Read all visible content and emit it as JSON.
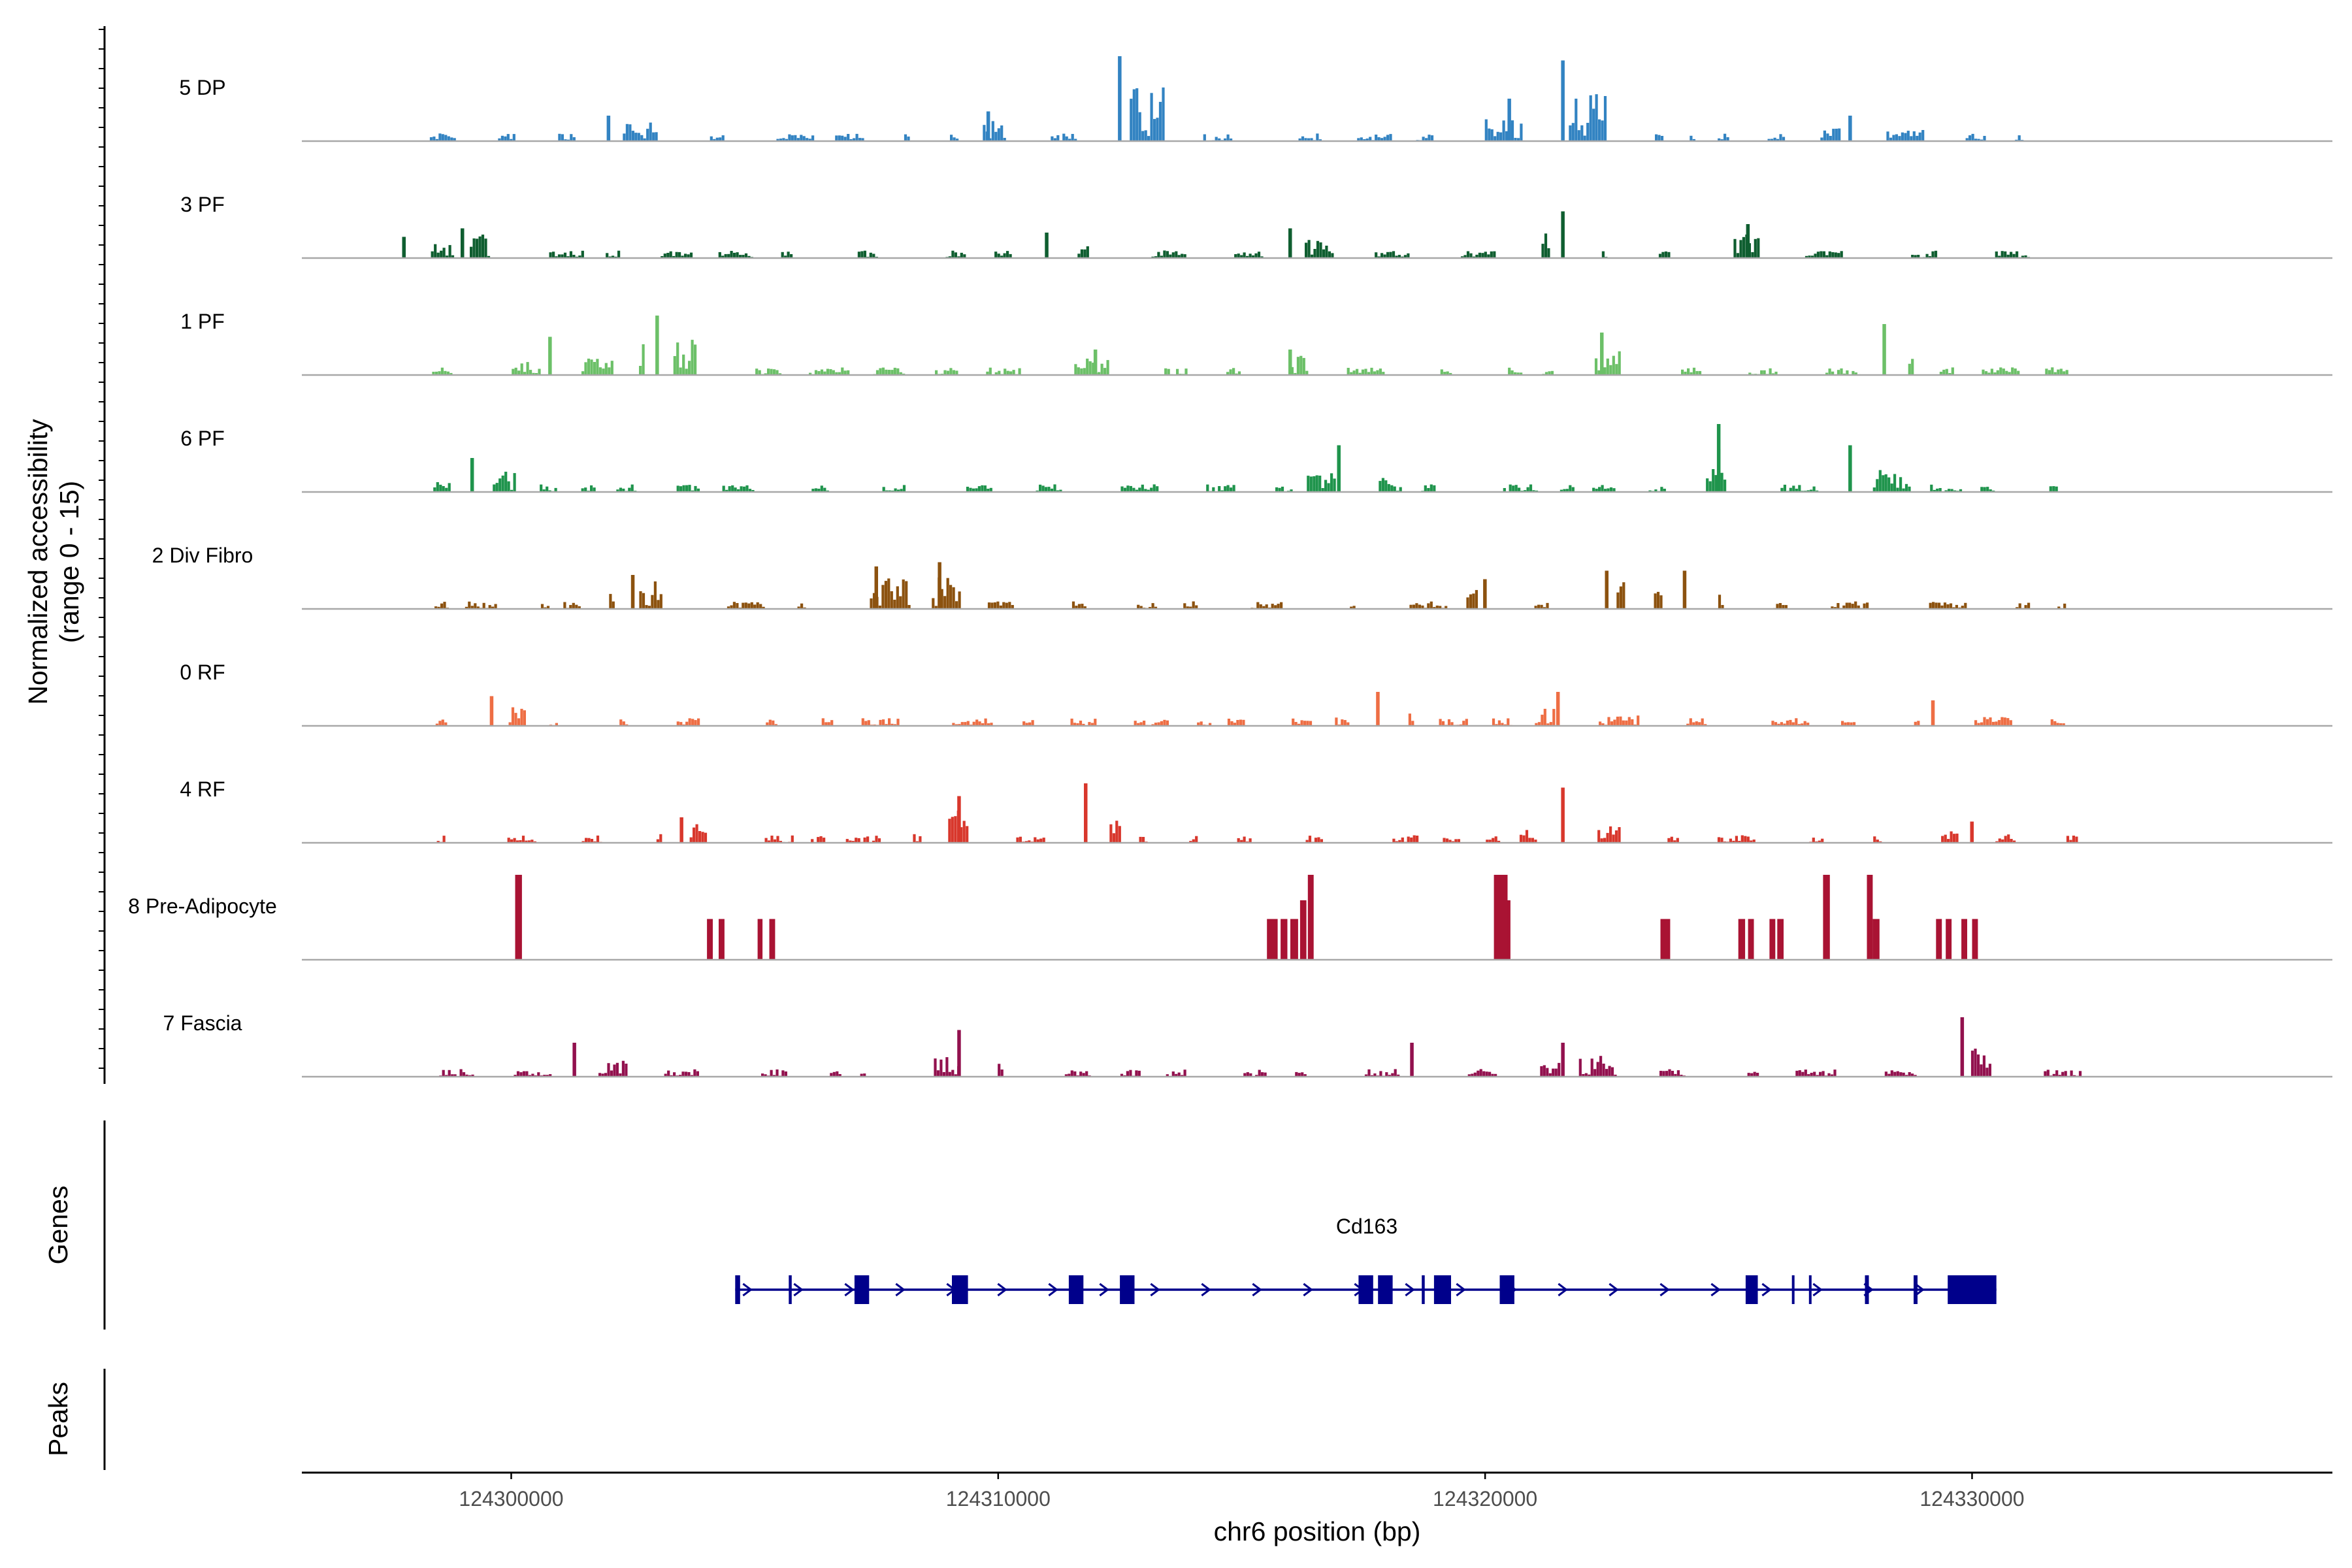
{
  "chart_data": {
    "type": "area",
    "title": "",
    "ylabel_line1": "Normalized accessibility",
    "ylabel_line2": "(range 0 - 15)",
    "y_range": [
      0,
      15
    ],
    "xlabel": "chr6 position (bp)",
    "xlim": [
      124295700,
      124337400
    ],
    "x_ticks": [
      124300000,
      124310000,
      124320000,
      124330000
    ],
    "x_tick_labels": [
      "124300000",
      "124310000",
      "124320000",
      "124330000"
    ],
    "coverage_tracks": [
      {
        "name": "5 DP",
        "color": "#3283C2",
        "hotspots": [
          [
            124302000,
            0.3
          ],
          [
            124309800,
            0.35
          ],
          [
            124312500,
            1.0
          ],
          [
            124320500,
            0.5
          ],
          [
            124321600,
            0.95
          ],
          [
            124327500,
            0.3
          ]
        ]
      },
      {
        "name": "3 PF",
        "color": "#0F5E30",
        "hotspots": [
          [
            124297800,
            0.25
          ],
          [
            124299000,
            0.35
          ],
          [
            124311000,
            0.3
          ],
          [
            124316000,
            0.35
          ],
          [
            124321600,
            0.55
          ],
          [
            124325400,
            0.4
          ]
        ]
      },
      {
        "name": "1 PF",
        "color": "#6CC068",
        "hotspots": [
          [
            124300800,
            0.45
          ],
          [
            124303000,
            0.7
          ],
          [
            124312000,
            0.3
          ],
          [
            124316000,
            0.3
          ],
          [
            124322400,
            0.5
          ],
          [
            124328200,
            0.6
          ]
        ]
      },
      {
        "name": "6 PF",
        "color": "#1F944C",
        "hotspots": [
          [
            124299200,
            0.4
          ],
          [
            124317000,
            0.55
          ],
          [
            124324800,
            0.8
          ],
          [
            124327500,
            0.55
          ]
        ]
      },
      {
        "name": "2 Div Fibro",
        "color": "#8C520F",
        "hotspots": [
          [
            124302500,
            0.4
          ],
          [
            124307500,
            0.5
          ],
          [
            124308800,
            0.55
          ],
          [
            124320000,
            0.35
          ],
          [
            124322500,
            0.45
          ],
          [
            124324100,
            0.45
          ]
        ]
      },
      {
        "name": "0 RF",
        "color": "#EE6E44",
        "hotspots": [
          [
            124299600,
            0.35
          ],
          [
            124317800,
            0.4
          ],
          [
            124321500,
            0.4
          ],
          [
            124329200,
            0.3
          ]
        ]
      },
      {
        "name": "4 RF",
        "color": "#D8372C",
        "hotspots": [
          [
            124303500,
            0.3
          ],
          [
            124309200,
            0.55
          ],
          [
            124311800,
            0.7
          ],
          [
            124321600,
            0.65
          ],
          [
            124330000,
            0.25
          ]
        ]
      },
      {
        "name": "8 Pre-Adipocyte",
        "color": "#A91333",
        "hotspots": []
      },
      {
        "name": "7 Fascia",
        "color": "#92114E",
        "hotspots": [
          [
            124301300,
            0.4
          ],
          [
            124309200,
            0.55
          ],
          [
            124318500,
            0.4
          ],
          [
            124321600,
            0.4
          ],
          [
            124329800,
            0.7
          ]
        ]
      }
    ],
    "preadipocyte_peaks": [
      {
        "start": 124300080,
        "end": 124300220,
        "value": 1.0
      },
      {
        "start": 124304020,
        "end": 124304140,
        "value": 0.48
      },
      {
        "start": 124304260,
        "end": 124304380,
        "value": 0.48
      },
      {
        "start": 124305060,
        "end": 124305160,
        "value": 0.48
      },
      {
        "start": 124305300,
        "end": 124305420,
        "value": 0.48
      },
      {
        "start": 124315520,
        "end": 124315740,
        "value": 0.48
      },
      {
        "start": 124315800,
        "end": 124315940,
        "value": 0.48
      },
      {
        "start": 124316000,
        "end": 124316160,
        "value": 0.48
      },
      {
        "start": 124316200,
        "end": 124316330,
        "value": 0.7
      },
      {
        "start": 124316360,
        "end": 124316480,
        "value": 1.0
      },
      {
        "start": 124320180,
        "end": 124320460,
        "value": 1.0
      },
      {
        "start": 124320460,
        "end": 124320520,
        "value": 0.7
      },
      {
        "start": 124323600,
        "end": 124323800,
        "value": 0.48
      },
      {
        "start": 124325200,
        "end": 124325340,
        "value": 0.48
      },
      {
        "start": 124325400,
        "end": 124325520,
        "value": 0.48
      },
      {
        "start": 124325840,
        "end": 124325960,
        "value": 0.48
      },
      {
        "start": 124326000,
        "end": 124326130,
        "value": 0.48
      },
      {
        "start": 124326940,
        "end": 124327080,
        "value": 1.0
      },
      {
        "start": 124327840,
        "end": 124327960,
        "value": 1.0
      },
      {
        "start": 124327960,
        "end": 124328100,
        "value": 0.48
      },
      {
        "start": 124329260,
        "end": 124329380,
        "value": 0.48
      },
      {
        "start": 124329460,
        "end": 124329580,
        "value": 0.48
      },
      {
        "start": 124329780,
        "end": 124329900,
        "value": 0.48
      },
      {
        "start": 124330000,
        "end": 124330120,
        "value": 0.48
      }
    ],
    "genes_label": "Genes",
    "peaks_label": "Peaks",
    "gene": {
      "name": "Cd163",
      "color": "#00008B",
      "strand": "+",
      "start": 124304600,
      "end": 124330500,
      "exons": [
        [
          124304600,
          124304700
        ],
        [
          124305700,
          124305760
        ],
        [
          124307050,
          124307350
        ],
        [
          124309050,
          124309380
        ],
        [
          124311450,
          124311750
        ],
        [
          124312500,
          124312800
        ],
        [
          124317400,
          124317700
        ],
        [
          124317800,
          124318100
        ],
        [
          124318700,
          124318760
        ],
        [
          124318950,
          124319300
        ],
        [
          124320300,
          124320600
        ],
        [
          124325350,
          124325600
        ],
        [
          124326300,
          124326330
        ],
        [
          124326650,
          124326700
        ],
        [
          124327800,
          124327880
        ],
        [
          124328800,
          124328880
        ],
        [
          124329500,
          124330500
        ]
      ]
    },
    "colors": {
      "baseline": "#A8A8A8",
      "axis": "#000000",
      "tick_text": "#4D4D4D",
      "label_text": "#000000"
    }
  }
}
